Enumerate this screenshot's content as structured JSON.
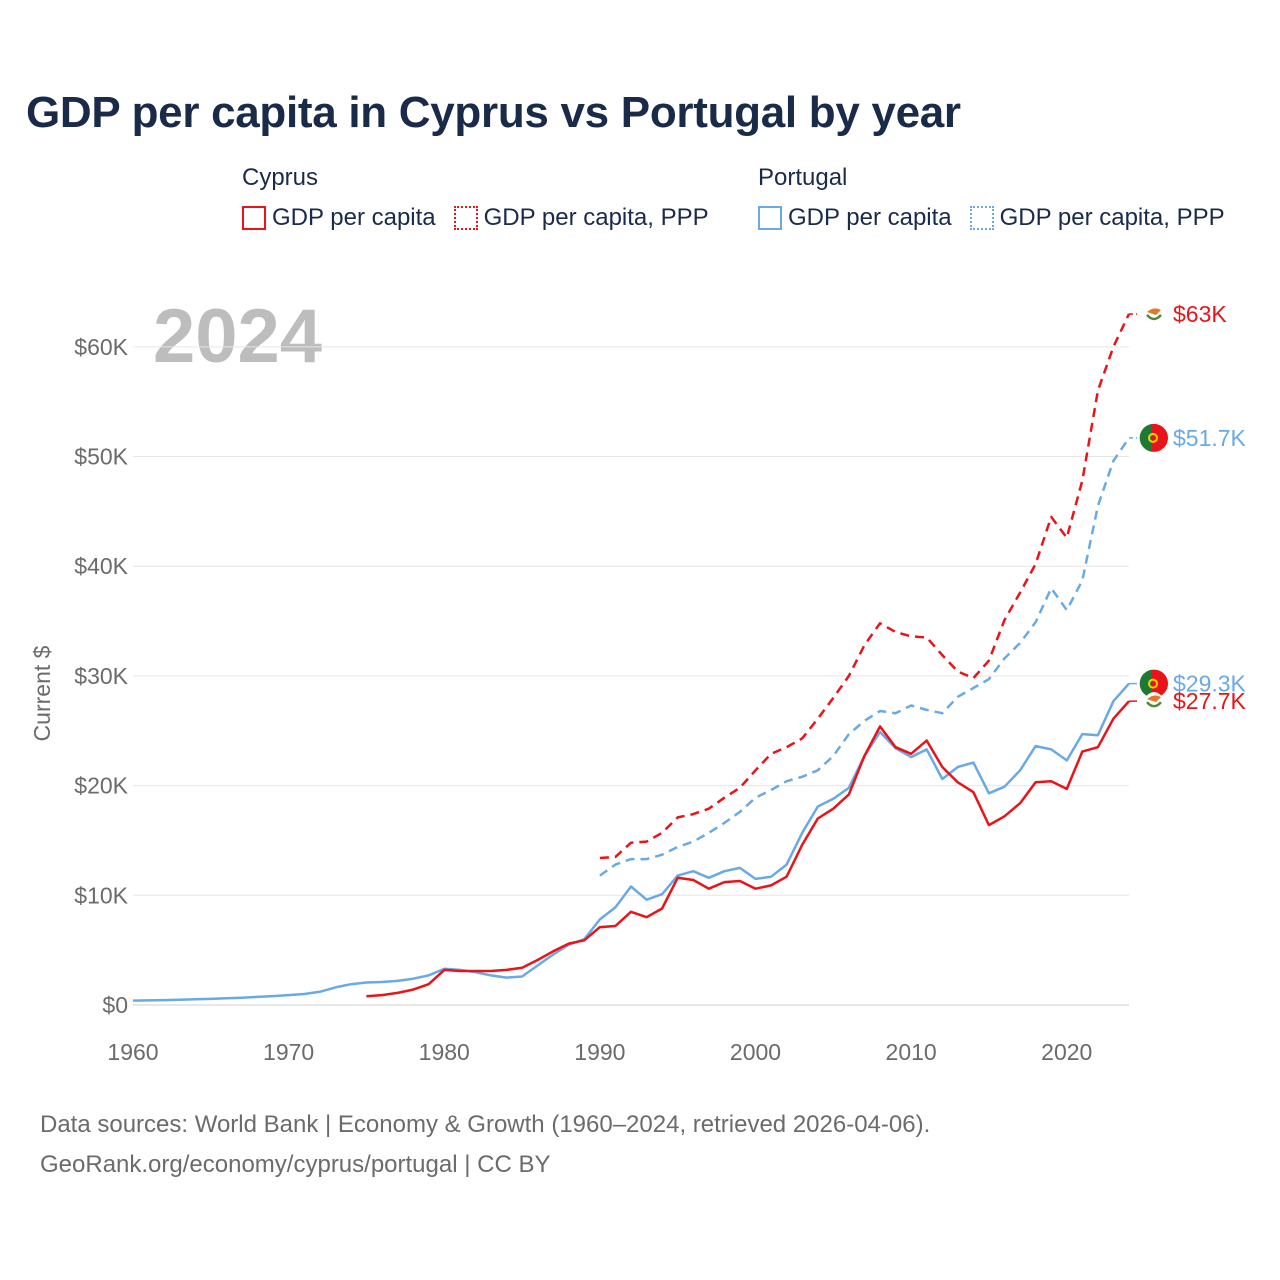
{
  "title": "GDP per capita in Cyprus vs Portugal by year",
  "legend": {
    "cyprus": {
      "country": "Cyprus",
      "gdp_label": "GDP per capita",
      "ppp_label": "GDP per capita, PPP"
    },
    "portugal": {
      "country": "Portugal",
      "gdp_label": "GDP per capita",
      "ppp_label": "GDP per capita, PPP"
    }
  },
  "colors": {
    "cyprus": "#e8141a",
    "portugal": "#6aaae4",
    "axis_text": "#6b6b6b",
    "grid": "#e6e6e6",
    "year_watermark": "#bdbdbd",
    "title": "#1a2b4a"
  },
  "footer": {
    "line1": "Data sources: World Bank | Economy & Growth (1960–2024, retrieved 2026-04-06).",
    "line2": "GeoRank.org/economy/cyprus/portugal | CC BY"
  },
  "chart_data": {
    "type": "line",
    "title": "GDP per capita in Cyprus vs Portugal by year",
    "year_label": "2024",
    "xlabel": "",
    "ylabel": "Current $",
    "xlim": [
      1960,
      2024
    ],
    "ylim": [
      0,
      65000
    ],
    "xticks": [
      1960,
      1970,
      1980,
      1990,
      2000,
      2010,
      2020
    ],
    "xtick_labels": [
      "1960",
      "1970",
      "1980",
      "1990",
      "2000",
      "2010",
      "2020"
    ],
    "yticks": [
      0,
      10000,
      20000,
      30000,
      40000,
      50000,
      60000
    ],
    "ytick_labels": [
      "$0",
      "$10K",
      "$20K",
      "$30K",
      "$40K",
      "$50K",
      "$60K"
    ],
    "grid": true,
    "series": [
      {
        "name": "Cyprus GDP per capita, PPP",
        "country": "cyprus",
        "dash": "dashed",
        "end_label": "$63K",
        "x": [
          1990,
          1991,
          1992,
          1993,
          1994,
          1995,
          1996,
          1997,
          1998,
          1999,
          2000,
          2001,
          2002,
          2003,
          2004,
          2005,
          2006,
          2007,
          2008,
          2009,
          2010,
          2011,
          2012,
          2013,
          2014,
          2015,
          2016,
          2017,
          2018,
          2019,
          2020,
          2021,
          2022,
          2023,
          2024
        ],
        "y": [
          13400,
          13500,
          14800,
          14900,
          15700,
          17100,
          17400,
          17900,
          18900,
          19800,
          21400,
          22900,
          23500,
          24300,
          26100,
          28000,
          30000,
          32800,
          34800,
          34000,
          33600,
          33500,
          31900,
          30400,
          29800,
          31400,
          35100,
          37600,
          40200,
          44500,
          42600,
          47800,
          56000,
          60000,
          63000
        ]
      },
      {
        "name": "Portugal GDP per capita, PPP",
        "country": "portugal",
        "dash": "dashed",
        "end_label": "$51.7K",
        "x": [
          1990,
          1991,
          1992,
          1993,
          1994,
          1995,
          1996,
          1997,
          1998,
          1999,
          2000,
          2001,
          2002,
          2003,
          2004,
          2005,
          2006,
          2007,
          2008,
          2009,
          2010,
          2011,
          2012,
          2013,
          2014,
          2015,
          2016,
          2017,
          2018,
          2019,
          2020,
          2021,
          2022,
          2023,
          2024
        ],
        "y": [
          11800,
          12800,
          13300,
          13300,
          13700,
          14400,
          14900,
          15700,
          16600,
          17600,
          18900,
          19600,
          20400,
          20800,
          21400,
          22700,
          24700,
          25900,
          26800,
          26600,
          27300,
          26900,
          26600,
          28100,
          28900,
          29700,
          31600,
          33000,
          34900,
          38000,
          36000,
          38700,
          45500,
          49600,
          51700
        ]
      },
      {
        "name": "Portugal GDP per capita",
        "country": "portugal",
        "dash": "solid",
        "end_label": "$29.3K",
        "x": [
          1960,
          1961,
          1962,
          1963,
          1964,
          1965,
          1966,
          1967,
          1968,
          1969,
          1970,
          1971,
          1972,
          1973,
          1974,
          1975,
          1976,
          1977,
          1978,
          1979,
          1980,
          1981,
          1982,
          1983,
          1984,
          1985,
          1986,
          1987,
          1988,
          1989,
          1990,
          1991,
          1992,
          1993,
          1994,
          1995,
          1996,
          1997,
          1998,
          1999,
          2000,
          2001,
          2002,
          2003,
          2004,
          2005,
          2006,
          2007,
          2008,
          2009,
          2010,
          2011,
          2012,
          2013,
          2014,
          2015,
          2016,
          2017,
          2018,
          2019,
          2020,
          2021,
          2022,
          2023,
          2024
        ],
        "y": [
          400,
          420,
          450,
          480,
          520,
          560,
          610,
          670,
          740,
          810,
          900,
          1000,
          1200,
          1600,
          1900,
          2050,
          2100,
          2200,
          2400,
          2700,
          3300,
          3200,
          3000,
          2700,
          2500,
          2600,
          3600,
          4600,
          5500,
          6000,
          7800,
          8900,
          10800,
          9600,
          10100,
          11800,
          12200,
          11600,
          12200,
          12500,
          11500,
          11700,
          12800,
          15700,
          18100,
          18800,
          19800,
          22700,
          24900,
          23400,
          22600,
          23300,
          20600,
          21700,
          22100,
          19300,
          19900,
          21400,
          23600,
          23300,
          22300,
          24700,
          24600,
          27700,
          29300
        ]
      },
      {
        "name": "Cyprus GDP per capita",
        "country": "cyprus",
        "dash": "solid",
        "end_label": "$27.7K",
        "x": [
          1975,
          1976,
          1977,
          1978,
          1979,
          1980,
          1981,
          1982,
          1983,
          1984,
          1985,
          1986,
          1987,
          1988,
          1989,
          1990,
          1991,
          1992,
          1993,
          1994,
          1995,
          1996,
          1997,
          1998,
          1999,
          2000,
          2001,
          2002,
          2003,
          2004,
          2005,
          2006,
          2007,
          2008,
          2009,
          2010,
          2011,
          2012,
          2013,
          2014,
          2015,
          2016,
          2017,
          2018,
          2019,
          2020,
          2021,
          2022,
          2023,
          2024
        ],
        "y": [
          800,
          900,
          1100,
          1400,
          1900,
          3200,
          3100,
          3100,
          3100,
          3200,
          3400,
          4100,
          4900,
          5600,
          5900,
          7100,
          7200,
          8500,
          8000,
          8800,
          11600,
          11400,
          10600,
          11200,
          11300,
          10600,
          10900,
          11700,
          14600,
          17000,
          17900,
          19200,
          22700,
          25400,
          23500,
          22900,
          24100,
          21700,
          20300,
          19400,
          16400,
          17200,
          18400,
          20300,
          20400,
          19700,
          23100,
          23500,
          26100,
          27700
        ]
      }
    ]
  }
}
